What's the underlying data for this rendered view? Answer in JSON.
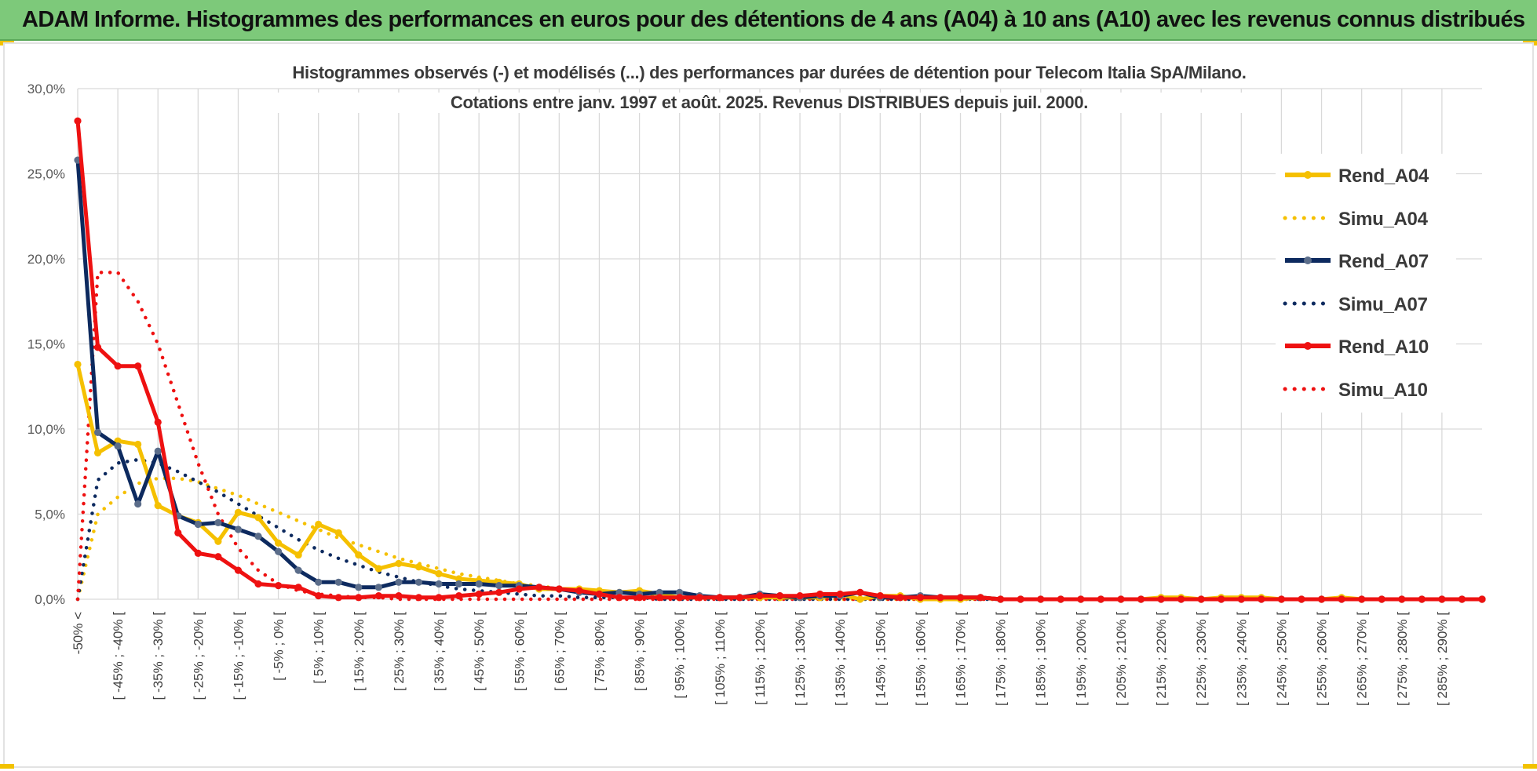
{
  "banner": {
    "title": "ADAM Informe. Histogrammes des performances en euros pour des détentions de 4 ans (A04) à 10 ans (A10) avec les revenus connus distribués"
  },
  "colors": {
    "gold": "#f5c000",
    "navy": "#0d2a5f",
    "red": "#ee1111",
    "grid": "#d9d9d9",
    "banner": "#7dc97a"
  },
  "chart_data": {
    "type": "line",
    "title": "Histogrammes observés (-) et modélisés (...) des performances par durées de détention pour Telecom Italia SpA/Milano.",
    "subtitle": "Cotations entre janv. 1997 et août. 2025. Revenus DISTRIBUES depuis juil. 2000.",
    "xlabel": "",
    "ylabel": "",
    "ylim": [
      0,
      30
    ],
    "yticks": [
      "0,0%",
      "5,0%",
      "10,0%",
      "15,0%",
      "20,0%",
      "25,0%",
      "30,0%"
    ],
    "grid": true,
    "legend_position": "right",
    "x_tick_labels": [
      "-50% <",
      "[ -45% ; -40% [",
      "[ -35% ; -30% [",
      "[ -25% ; -20% [",
      "[ -15% ; -10% [",
      "[ -5% ; 0% [",
      "[ 5% ; 10% [",
      "[ 15% ; 20% [",
      "[ 25% ; 30% [",
      "[ 35% ; 40% [",
      "[ 45% ; 50% [",
      "[ 55% ; 60% [",
      "[ 65% ; 70% [",
      "[ 75% ; 80% [",
      "[ 85% ; 90% [",
      "[ 95% ; 100% [",
      "[ 105% ; 110% [",
      "[ 115% ; 120% [",
      "[ 125% ; 130% [",
      "[ 135% ; 140% [",
      "[ 145% ; 150% [",
      "[ 155% ; 160% [",
      "[ 165% ; 170% [",
      "[ 175% ; 180% [",
      "[ 185% ; 190% [",
      "[ 195% ; 200% [",
      "[ 205% ; 210% [",
      "[ 215% ; 220% [",
      "[ 225% ; 230% [",
      "[ 235% ; 240% [",
      "[ 245% ; 250% [",
      "[ 255% ; 260% [",
      "[ 265% ; 270% [",
      "[ 275% ; 280% [",
      "[ 285% ; 290% ["
    ],
    "series": [
      {
        "name": "Rend_A04",
        "style": "solid",
        "color": "#f5c000",
        "values": [
          13.8,
          8.6,
          9.3,
          9.1,
          5.5,
          4.9,
          4.5,
          3.4,
          5.1,
          4.8,
          3.3,
          2.6,
          4.4,
          3.9,
          2.6,
          1.8,
          2.1,
          1.9,
          1.5,
          1.2,
          1.1,
          1.0,
          0.9,
          0.6,
          0.6,
          0.6,
          0.5,
          0.4,
          0.5,
          0.3,
          0.1,
          0.1,
          0.1,
          0.1,
          0.1,
          0.1,
          0.1,
          0.1,
          0.3,
          0.0,
          0.2,
          0.2,
          0.0,
          0.0,
          0.0,
          0.1,
          0.0,
          0.0,
          0.0,
          0.0,
          0.0,
          0.0,
          0.0,
          0.0,
          0.1,
          0.1,
          0.0,
          0.1,
          0.1,
          0.1,
          0.0,
          0.0,
          0.0,
          0.1,
          0.0,
          0.0,
          0.0,
          0.0,
          0.0,
          0.0,
          0.0
        ]
      },
      {
        "name": "Simu_A04",
        "style": "dotted",
        "color": "#f5c000",
        "values": [
          0.0,
          5.0,
          6.0,
          6.8,
          7.1,
          7.1,
          6.9,
          6.5,
          6.1,
          5.6,
          5.1,
          4.6,
          4.1,
          3.6,
          3.2,
          2.8,
          2.4,
          2.1,
          1.8,
          1.5,
          1.3,
          1.1,
          0.9,
          0.8,
          0.6,
          0.5,
          0.4,
          0.4,
          0.3,
          0.2,
          0.2,
          0.2,
          0.1,
          0.1,
          0.1,
          0.1,
          0.1,
          0.0,
          0.0,
          0.0,
          0.0,
          0.0,
          0.0,
          0.0,
          0.0,
          0.0,
          0.0,
          0.0,
          0.0,
          0.0,
          0.0,
          0.0,
          0.0,
          0.0,
          0.0,
          0.0,
          0.0,
          0.0,
          0.0,
          0.0,
          0.0,
          0.0,
          0.0,
          0.0,
          0.0,
          0.0,
          0.0,
          0.0,
          0.0,
          0.0,
          0.0
        ]
      },
      {
        "name": "Rend_A07",
        "style": "solid",
        "color": "#0d2a5f",
        "values": [
          25.8,
          9.8,
          9.0,
          5.6,
          8.7,
          4.9,
          4.4,
          4.5,
          4.1,
          3.7,
          2.8,
          1.7,
          1.0,
          1.0,
          0.7,
          0.7,
          1.0,
          1.0,
          0.9,
          0.9,
          0.9,
          0.8,
          0.8,
          0.7,
          0.6,
          0.4,
          0.3,
          0.4,
          0.3,
          0.4,
          0.4,
          0.2,
          0.1,
          0.1,
          0.3,
          0.2,
          0.1,
          0.2,
          0.2,
          0.4,
          0.1,
          0.1,
          0.2,
          0.1,
          0.1,
          0.1,
          0.0,
          0.0,
          0.0,
          0.0,
          0.0,
          0.0,
          0.0,
          0.0,
          0.0,
          0.0,
          0.0,
          0.0,
          0.0,
          0.0,
          0.0,
          0.0,
          0.0,
          0.0,
          0.0,
          0.0,
          0.0,
          0.0,
          0.0,
          0.0,
          0.0
        ]
      },
      {
        "name": "Simu_A07",
        "style": "dotted",
        "color": "#0d2a5f",
        "values": [
          0.0,
          7.0,
          8.0,
          8.2,
          8.0,
          7.5,
          6.9,
          6.3,
          5.6,
          4.9,
          4.2,
          3.5,
          2.9,
          2.4,
          2.0,
          1.6,
          1.3,
          1.0,
          0.8,
          0.6,
          0.5,
          0.4,
          0.3,
          0.2,
          0.2,
          0.1,
          0.1,
          0.1,
          0.1,
          0.0,
          0.0,
          0.0,
          0.0,
          0.0,
          0.0,
          0.0,
          0.0,
          0.0,
          0.0,
          0.0,
          0.0,
          0.0,
          0.0,
          0.0,
          0.0,
          0.0,
          0.0,
          0.0,
          0.0,
          0.0,
          0.0,
          0.0,
          0.0,
          0.0,
          0.0,
          0.0,
          0.0,
          0.0,
          0.0,
          0.0,
          0.0,
          0.0,
          0.0,
          0.0,
          0.0,
          0.0,
          0.0,
          0.0,
          0.0,
          0.0,
          0.0
        ]
      },
      {
        "name": "Rend_A10",
        "style": "solid",
        "color": "#ee1111",
        "values": [
          28.1,
          14.8,
          13.7,
          13.7,
          10.4,
          3.9,
          2.7,
          2.5,
          1.7,
          0.9,
          0.8,
          0.7,
          0.2,
          0.1,
          0.1,
          0.2,
          0.2,
          0.1,
          0.1,
          0.2,
          0.3,
          0.4,
          0.6,
          0.7,
          0.6,
          0.5,
          0.3,
          0.1,
          0.1,
          0.1,
          0.1,
          0.1,
          0.1,
          0.1,
          0.2,
          0.2,
          0.2,
          0.3,
          0.3,
          0.4,
          0.2,
          0.1,
          0.1,
          0.1,
          0.1,
          0.1,
          0.0,
          0.0,
          0.0,
          0.0,
          0.0,
          0.0,
          0.0,
          0.0,
          0.0,
          0.0,
          0.0,
          0.0,
          0.0,
          0.0,
          0.0,
          0.0,
          0.0,
          0.0,
          0.0,
          0.0,
          0.0,
          0.0,
          0.0,
          0.0,
          0.0
        ]
      },
      {
        "name": "Simu_A10",
        "style": "dotted",
        "color": "#ee1111",
        "values": [
          0.0,
          19.2,
          19.2,
          17.5,
          15.0,
          11.5,
          8.0,
          5.0,
          3.0,
          1.7,
          0.9,
          0.5,
          0.3,
          0.2,
          0.1,
          0.1,
          0.0,
          0.0,
          0.0,
          0.0,
          0.0,
          0.0,
          0.0,
          0.0,
          0.0,
          0.0,
          0.0,
          0.0,
          0.0,
          0.0,
          0.0,
          0.0,
          0.0,
          0.0,
          0.0,
          0.0,
          0.0,
          0.0,
          0.0,
          0.0,
          0.0,
          0.0,
          0.0,
          0.0,
          0.0,
          0.0,
          0.0,
          0.0,
          0.0,
          0.0,
          0.0,
          0.0,
          0.0,
          0.0,
          0.0,
          0.0,
          0.0,
          0.0,
          0.0,
          0.0,
          0.0,
          0.0,
          0.0,
          0.0,
          0.0,
          0.0,
          0.0,
          0.0,
          0.0,
          0.0,
          0.0
        ]
      }
    ]
  }
}
